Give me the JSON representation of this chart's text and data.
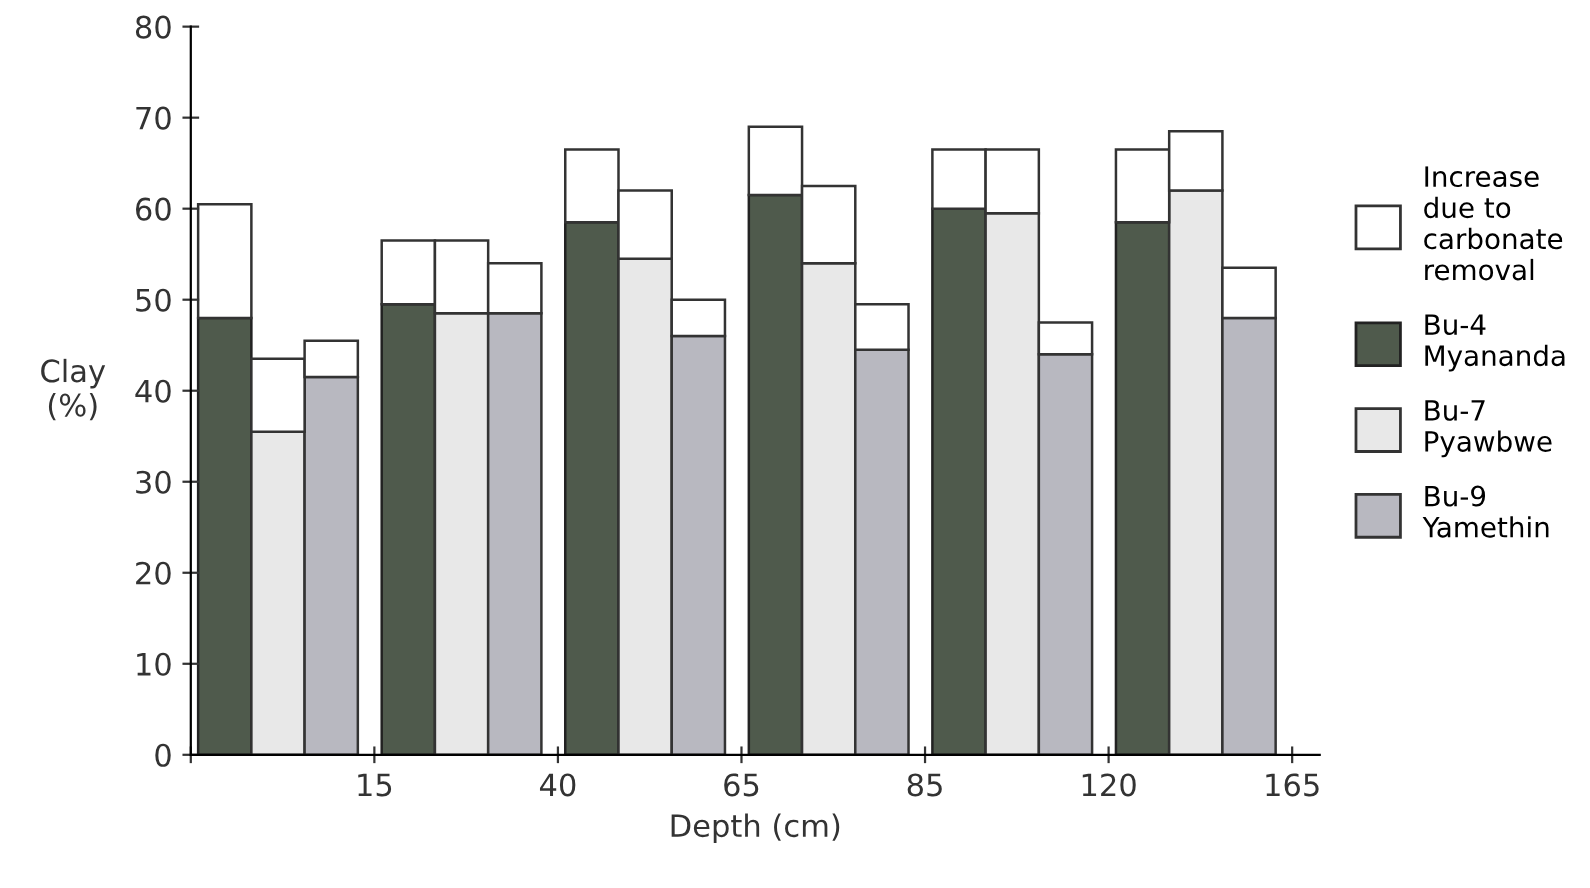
{
  "chart_data": {
    "type": "bar",
    "stacked": true,
    "xlabel": "Depth (cm)",
    "ylabel": "Clay\n(%)",
    "categories": [
      null,
      null,
      null,
      null,
      null,
      null,
      null,
      null,
      null,
      null,
      null,
      null,
      null,
      null,
      null,
      null,
      null,
      null
    ],
    "series": [
      {
        "name": "Bu-4\nMyananda",
        "color": "#4f5a4c",
        "values": [
          48,
          null,
          null,
          49.5,
          null,
          null,
          58.5,
          null,
          null,
          61.5,
          null,
          null,
          60,
          null,
          null,
          58.5,
          null,
          null
        ]
      },
      {
        "name": "Bu-7\nPyawbwe",
        "color": "#e8e8e8",
        "values": [
          null,
          35.5,
          null,
          null,
          48.5,
          null,
          null,
          54.5,
          null,
          null,
          54,
          null,
          null,
          59.5,
          null,
          null,
          62,
          null
        ]
      },
      {
        "name": "Bu-9\nYamethin",
        "color": "#b8b8c0",
        "values": [
          null,
          null,
          41.5,
          null,
          null,
          48.5,
          null,
          null,
          46,
          null,
          null,
          44.5,
          null,
          null,
          44,
          null,
          null,
          48
        ]
      },
      {
        "name": "Increase\ndue to\ncarbonate\nremoval",
        "color": "#ffffff",
        "values": [
          12.5,
          8,
          4,
          7,
          8,
          5.5,
          8,
          7.5,
          4,
          7.5,
          8.5,
          5,
          6.5,
          7,
          3.5,
          8,
          6.5,
          5.5
        ]
      }
    ],
    "annotations": [
      "15",
      "40",
      "65",
      "85",
      "120",
      "165"
    ],
    "ylim": [
      0,
      80
    ],
    "yticks": [
      0,
      10,
      20,
      30,
      40,
      50,
      60,
      70,
      80
    ],
    "grid": false,
    "legend": "right"
  }
}
